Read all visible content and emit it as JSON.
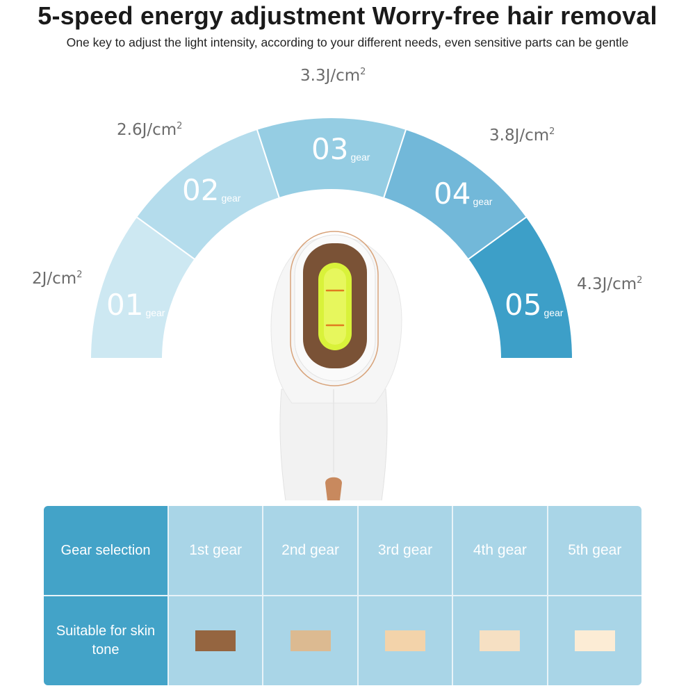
{
  "header": {
    "title": "5-speed energy adjustment  Worry-free hair removal",
    "subtitle": "One key to adjust the light intensity, according to your different needs, even sensitive parts can be gentle"
  },
  "gauge": {
    "gear_word": "gear",
    "segments": [
      {
        "number": "01",
        "energy_value": "2J/cm",
        "unit_sup": "2",
        "color": "#cde8f2"
      },
      {
        "number": "02",
        "energy_value": "2.6J/cm",
        "unit_sup": "2",
        "color": "#b4dcec"
      },
      {
        "number": "03",
        "energy_value": "3.3J/cm",
        "unit_sup": "2",
        "color": "#95cde3"
      },
      {
        "number": "04",
        "energy_value": "3.8J/cm",
        "unit_sup": "2",
        "color": "#72b8d9"
      },
      {
        "number": "05",
        "energy_value": "4.3J/cm",
        "unit_sup": "2",
        "color": "#3d9fc8"
      }
    ]
  },
  "device": {
    "body_color": "#f4f4f4",
    "frame_color": "#7a5236",
    "lamp_color": "#d9f23a",
    "accent_color": "#c8895e"
  },
  "table": {
    "row1_header": "Gear selection",
    "row2_header": "Suitable for skin tone",
    "gears": [
      "1st gear",
      "2nd gear",
      "3rd gear",
      "4th gear",
      "5th gear"
    ],
    "skin_tones": [
      "#956540",
      "#dcba91",
      "#f3d3aa",
      "#f6e0c3",
      "#fcecd5"
    ],
    "header_color": "#43a3c8",
    "cell_color": "#a9d5e7"
  }
}
